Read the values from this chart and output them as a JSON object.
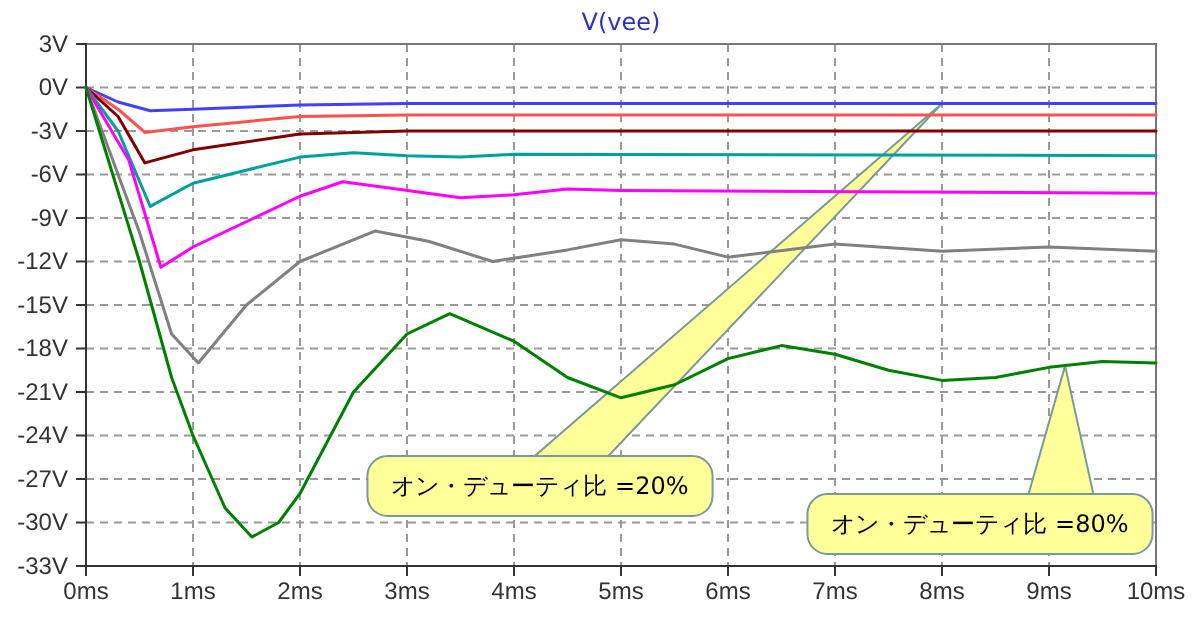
{
  "chart_data": {
    "type": "line",
    "title": "V(vee)",
    "xlim": [
      0,
      10
    ],
    "xticks": [
      {
        "value": 0,
        "label": "0ms"
      },
      {
        "value": 1,
        "label": "1ms"
      },
      {
        "value": 2,
        "label": "2ms"
      },
      {
        "value": 3,
        "label": "3ms"
      },
      {
        "value": 4,
        "label": "4ms"
      },
      {
        "value": 5,
        "label": "5ms"
      },
      {
        "value": 6,
        "label": "6ms"
      },
      {
        "value": 7,
        "label": "7ms"
      },
      {
        "value": 8,
        "label": "8ms"
      },
      {
        "value": 9,
        "label": "9ms"
      },
      {
        "value": 10,
        "label": "10ms"
      }
    ],
    "ylim": [
      -33,
      3
    ],
    "yticks": [
      {
        "value": 3,
        "label": "3V"
      },
      {
        "value": 0,
        "label": "0V"
      },
      {
        "value": -3,
        "label": "-3V"
      },
      {
        "value": -6,
        "label": "-6V"
      },
      {
        "value": -9,
        "label": "-9V"
      },
      {
        "value": -12,
        "label": "-12V"
      },
      {
        "value": -15,
        "label": "-15V"
      },
      {
        "value": -18,
        "label": "-18V"
      },
      {
        "value": -21,
        "label": "-21V"
      },
      {
        "value": -24,
        "label": "-24V"
      },
      {
        "value": -27,
        "label": "-27V"
      },
      {
        "value": -30,
        "label": "-30V"
      },
      {
        "value": -33,
        "label": "-33V"
      }
    ],
    "grid": true,
    "line_style": "solid",
    "marker": "none",
    "series": [
      {
        "color": "#4040ff",
        "x": [
          0,
          0.3,
          0.6,
          1,
          2,
          3,
          10
        ],
        "values": [
          0,
          -1,
          -1.6,
          -1.5,
          -1.2,
          -1.1,
          -1.1
        ]
      },
      {
        "color": "#ff5050",
        "x": [
          0,
          0.3,
          0.55,
          1,
          2,
          3,
          10
        ],
        "values": [
          0,
          -1.5,
          -3.1,
          -2.7,
          -2,
          -1.9,
          -1.9
        ]
      },
      {
        "color": "#800000",
        "x": [
          0,
          0.3,
          0.55,
          1,
          2,
          3,
          10
        ],
        "values": [
          0,
          -2,
          -5.2,
          -4.3,
          -3.2,
          -3,
          -3
        ]
      },
      {
        "color": "#00a0a0",
        "x": [
          0,
          0.3,
          0.6,
          1,
          2,
          2.5,
          3,
          3.5,
          4,
          10
        ],
        "values": [
          0,
          -3,
          -8.2,
          -6.6,
          -4.8,
          -4.5,
          -4.7,
          -4.8,
          -4.6,
          -4.7
        ]
      },
      {
        "color": "#ff00ff",
        "x": [
          0,
          0.4,
          0.7,
          1,
          2,
          2.4,
          2.8,
          3.5,
          4,
          4.5,
          5,
          10
        ],
        "values": [
          0,
          -5,
          -12.4,
          -11,
          -7.5,
          -6.5,
          -6.9,
          -7.6,
          -7.4,
          -7,
          -7.1,
          -7.3
        ]
      },
      {
        "color": "#808080",
        "x": [
          0,
          0.5,
          0.8,
          1.05,
          1.5,
          2,
          2.7,
          3.2,
          3.8,
          4.5,
          5,
          5.5,
          6,
          7,
          8,
          9,
          10
        ],
        "values": [
          0,
          -10,
          -17,
          -19,
          -15,
          -12,
          -9.9,
          -10.6,
          -12,
          -11.2,
          -10.5,
          -10.8,
          -11.7,
          -10.8,
          -11.3,
          -11,
          -11.3
        ]
      },
      {
        "color": "#008000",
        "x": [
          0,
          0.5,
          0.8,
          1,
          1.3,
          1.55,
          1.8,
          2,
          2.5,
          3,
          3.4,
          4,
          4.5,
          5,
          5.5,
          6,
          6.5,
          7,
          7.5,
          8,
          8.5,
          9,
          9.5,
          10
        ],
        "values": [
          0,
          -12,
          -20,
          -24,
          -29,
          -31,
          -30,
          -28,
          -21,
          -17,
          -15.6,
          -17.5,
          -20,
          -21.4,
          -20.5,
          -18.7,
          -17.8,
          -18.4,
          -19.5,
          -20.2,
          -20,
          -19.3,
          -18.9,
          -19
        ]
      }
    ],
    "annotations": [
      "オン・デューティ比 =20%",
      "オン・デューティ比 =80%"
    ]
  }
}
